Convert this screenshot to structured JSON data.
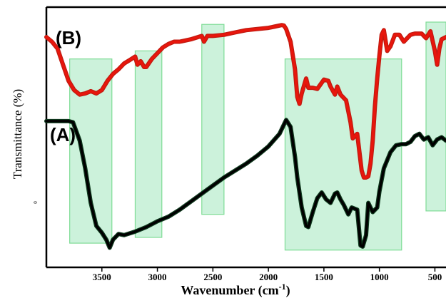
{
  "chart_data": {
    "type": "line",
    "xlabel": "Wavenumber (cm",
    "xlabel_superscript": "-1",
    "xlabel_suffix": ")",
    "ylabel": "Transmittance (%)",
    "y_axis_zero_label": "0",
    "xlim": [
      4000,
      400
    ],
    "x_reversed": true,
    "x_ticks": [
      3500,
      3000,
      2500,
      2000,
      1500,
      1000,
      500
    ],
    "grid": false,
    "legend": "none",
    "series": [
      {
        "name": "(A)",
        "color": "#000000",
        "x": [
          4000,
          3800,
          3760,
          3700,
          3650,
          3600,
          3550,
          3500,
          3460,
          3430,
          3400,
          3350,
          3300,
          3200,
          3100,
          3000,
          2900,
          2800,
          2700,
          2600,
          2500,
          2400,
          2300,
          2200,
          2100,
          2000,
          1900,
          1860,
          1840,
          1800,
          1760,
          1740,
          1700,
          1660,
          1640,
          1600,
          1560,
          1520,
          1480,
          1440,
          1400,
          1380,
          1350,
          1320,
          1280,
          1250,
          1200,
          1170,
          1150,
          1120,
          1100,
          1060,
          1020,
          1000,
          960,
          900,
          850,
          800,
          760,
          720,
          680,
          640,
          600,
          560,
          520,
          480,
          440,
          400
        ],
        "y": [
          55.5,
          55.5,
          55.0,
          47.0,
          35.0,
          20.0,
          10.0,
          7.0,
          4.0,
          0.5,
          4.0,
          6.5,
          6.0,
          7.5,
          9.5,
          12.0,
          14.0,
          17.0,
          20.5,
          24.0,
          27.5,
          31.0,
          34.0,
          37.0,
          40.5,
          44.5,
          50.0,
          54.0,
          56.0,
          53.0,
          40.0,
          31.0,
          18.0,
          10.0,
          9.5,
          16.0,
          22.0,
          24.5,
          21.5,
          20.0,
          24.0,
          24.5,
          21.5,
          19.0,
          15.0,
          18.0,
          17.0,
          1.5,
          1.0,
          6.0,
          20.0,
          16.0,
          18.0,
          25.0,
          35.0,
          42.0,
          45.0,
          45.5,
          45.5,
          46.5,
          49.0,
          50.0,
          47.5,
          48.5,
          45.0,
          47.5,
          48.5,
          47.0
        ]
      },
      {
        "name": "(B)",
        "color": "#e8160c",
        "x": [
          4000,
          3950,
          3900,
          3850,
          3800,
          3750,
          3700,
          3650,
          3600,
          3550,
          3500,
          3450,
          3400,
          3350,
          3300,
          3250,
          3200,
          3180,
          3150,
          3120,
          3100,
          3050,
          3000,
          2950,
          2900,
          2850,
          2800,
          2700,
          2600,
          2580,
          2550,
          2500,
          2400,
          2300,
          2200,
          2100,
          2000,
          1950,
          1900,
          1880,
          1860,
          1840,
          1800,
          1760,
          1740,
          1720,
          1700,
          1660,
          1640,
          1600,
          1560,
          1500,
          1460,
          1440,
          1400,
          1380,
          1350,
          1300,
          1260,
          1240,
          1200,
          1180,
          1160,
          1140,
          1120,
          1100,
          1080,
          1060,
          1040,
          1020,
          1000,
          980,
          960,
          930,
          900,
          860,
          820,
          780,
          750,
          720,
          680,
          620,
          580,
          540,
          500,
          480,
          460,
          440,
          420,
          400
        ],
        "y": [
          92.0,
          90.0,
          87.0,
          80.0,
          73.0,
          69.0,
          67.0,
          67.5,
          68.5,
          67.5,
          69.0,
          73.0,
          76.0,
          78.0,
          80.5,
          82.0,
          83.5,
          80.0,
          81.5,
          79.0,
          79.0,
          82.5,
          85.0,
          87.5,
          89.0,
          90.0,
          90.0,
          91.0,
          92.5,
          90.0,
          92.5,
          92.5,
          93.0,
          94.0,
          95.0,
          95.5,
          96.0,
          96.5,
          97.0,
          97.2,
          97.0,
          95.5,
          90.0,
          78.0,
          66.0,
          63.0,
          67.5,
          74.0,
          70.0,
          70.0,
          69.5,
          73.5,
          73.0,
          70.5,
          67.0,
          70.5,
          67.0,
          64.5,
          55.0,
          48.0,
          50.0,
          42.0,
          34.0,
          31.0,
          31.0,
          31.5,
          37.0,
          47.0,
          62.0,
          74.0,
          84.0,
          93.0,
          95.0,
          86.0,
          88.0,
          93.0,
          93.0,
          90.0,
          91.5,
          93.0,
          93.5,
          93.5,
          91.5,
          94.5,
          86.0,
          80.0,
          87.0,
          91.0,
          91.5,
          92.0
        ]
      }
    ],
    "highlight_bands": [
      {
        "x_from": 3790,
        "x_to": 3410,
        "y_from": 2.5,
        "y_to": 82.5
      },
      {
        "x_from": 3200,
        "x_to": 2960,
        "y_from": 5.0,
        "y_to": 86.0
      },
      {
        "x_from": 2600,
        "x_to": 2400,
        "y_from": 15.0,
        "y_to": 97.5
      },
      {
        "x_from": 1850,
        "x_to": 800,
        "y_from": -0.5,
        "y_to": 82.5
      },
      {
        "x_from": 580,
        "x_to": 400,
        "y_from": 16.5,
        "y_to": 98.5
      }
    ]
  }
}
